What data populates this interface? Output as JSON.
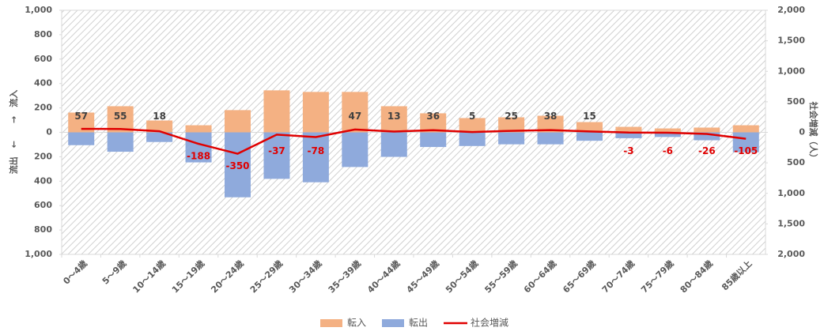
{
  "chart_data": {
    "type": "bar",
    "y_label": "流出　←　　→　流入",
    "y2_label": "社会増減（人）",
    "categories": [
      "0～4歳",
      "5～9歳",
      "10～14歳",
      "15～19歳",
      "20～24歳",
      "25～29歳",
      "30～34歳",
      "35～39歳",
      "40～44歳",
      "45～49歳",
      "50～54歳",
      "55～59歳",
      "60～64歳",
      "65～69歳",
      "70～74歳",
      "75～79歳",
      "80～84歳",
      "85歳以上"
    ],
    "series": [
      {
        "name": "転入",
        "color": "#f4b183",
        "type": "bar",
        "values": [
          162,
          214,
          97,
          58,
          182,
          344,
          331,
          331,
          214,
          156,
          117,
          123,
          136,
          84,
          45,
          32,
          39,
          58
        ]
      },
      {
        "name": "転出",
        "color": "#8faadc",
        "type": "bar",
        "values": [
          -105,
          -159,
          -79,
          -246,
          -532,
          -381,
          -409,
          -284,
          -201,
          -120,
          -112,
          -98,
          -98,
          -69,
          -48,
          -38,
          -65,
          -163
        ]
      },
      {
        "name": "社会増減",
        "color": "#e00000",
        "type": "line",
        "axis": "y2",
        "values": [
          57,
          55,
          18,
          -188,
          -350,
          -37,
          -78,
          47,
          13,
          36,
          5,
          25,
          38,
          15,
          -3,
          -6,
          -26,
          -105
        ]
      }
    ],
    "ylim": [
      -1000,
      1000
    ],
    "yticks": [
      {
        "value": -1000,
        "label": "1,000"
      },
      {
        "value": -800,
        "label": "800"
      },
      {
        "value": -600,
        "label": "600"
      },
      {
        "value": -400,
        "label": "400"
      },
      {
        "value": -200,
        "label": "200"
      },
      0,
      200,
      400,
      600,
      800,
      {
        "value": 1000,
        "label": "1,000"
      }
    ],
    "y2lim": [
      -2000,
      2000
    ],
    "y2ticks": [
      {
        "value": -2000,
        "label": "2,000"
      },
      {
        "value": -1500,
        "label": "1,500"
      },
      {
        "value": -1000,
        "label": "1,000"
      },
      {
        "value": -500,
        "label": "500"
      },
      0,
      500,
      {
        "value": 1000,
        "label": "1,000"
      },
      {
        "value": 1500,
        "label": "1,500"
      },
      {
        "value": 2000,
        "label": "2,000"
      }
    ],
    "legend": "bottom"
  }
}
